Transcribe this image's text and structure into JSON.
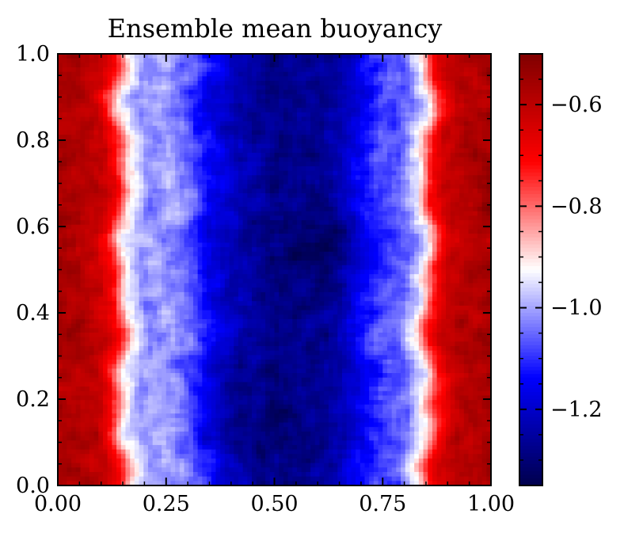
{
  "chart_data": {
    "type": "heatmap",
    "title": "Ensemble mean buoyancy",
    "xlabel": "",
    "ylabel": "",
    "xlim": [
      0.0,
      1.0
    ],
    "ylim": [
      0.0,
      1.0
    ],
    "x_ticks": [
      0.0,
      0.25,
      0.5,
      0.75,
      1.0
    ],
    "x_tick_labels": [
      "0.00",
      "0.25",
      "0.50",
      "0.75",
      "1.00"
    ],
    "y_ticks": [
      0.0,
      0.2,
      0.4,
      0.6,
      0.8,
      1.0
    ],
    "y_tick_labels": [
      "0.0",
      "0.2",
      "0.4",
      "0.6",
      "0.8",
      "1.0"
    ],
    "colormap": "seismic",
    "colorbar": {
      "vmin": -1.35,
      "vmax": -0.5,
      "ticks": [
        -0.6,
        -0.8,
        -1.0,
        -1.2
      ],
      "tick_labels": [
        "−0.6",
        "−0.8",
        "−1.0",
        "−1.2"
      ]
    },
    "field_description_points": {
      "x": [
        0.0,
        0.05,
        0.1,
        0.13,
        0.16,
        0.2,
        0.25,
        0.3,
        0.35,
        0.4,
        0.45,
        0.5,
        0.55,
        0.6,
        0.65,
        0.7,
        0.75,
        0.8,
        0.84,
        0.87,
        0.9,
        0.95,
        1.0
      ],
      "value": [
        -0.56,
        -0.58,
        -0.62,
        -0.72,
        -0.92,
        -1.02,
        -1.0,
        -1.05,
        -1.15,
        -1.22,
        -1.25,
        -1.28,
        -1.28,
        -1.27,
        -1.24,
        -1.15,
        -1.08,
        -1.05,
        -0.92,
        -0.72,
        -0.62,
        -0.58,
        -0.56
      ]
    }
  }
}
